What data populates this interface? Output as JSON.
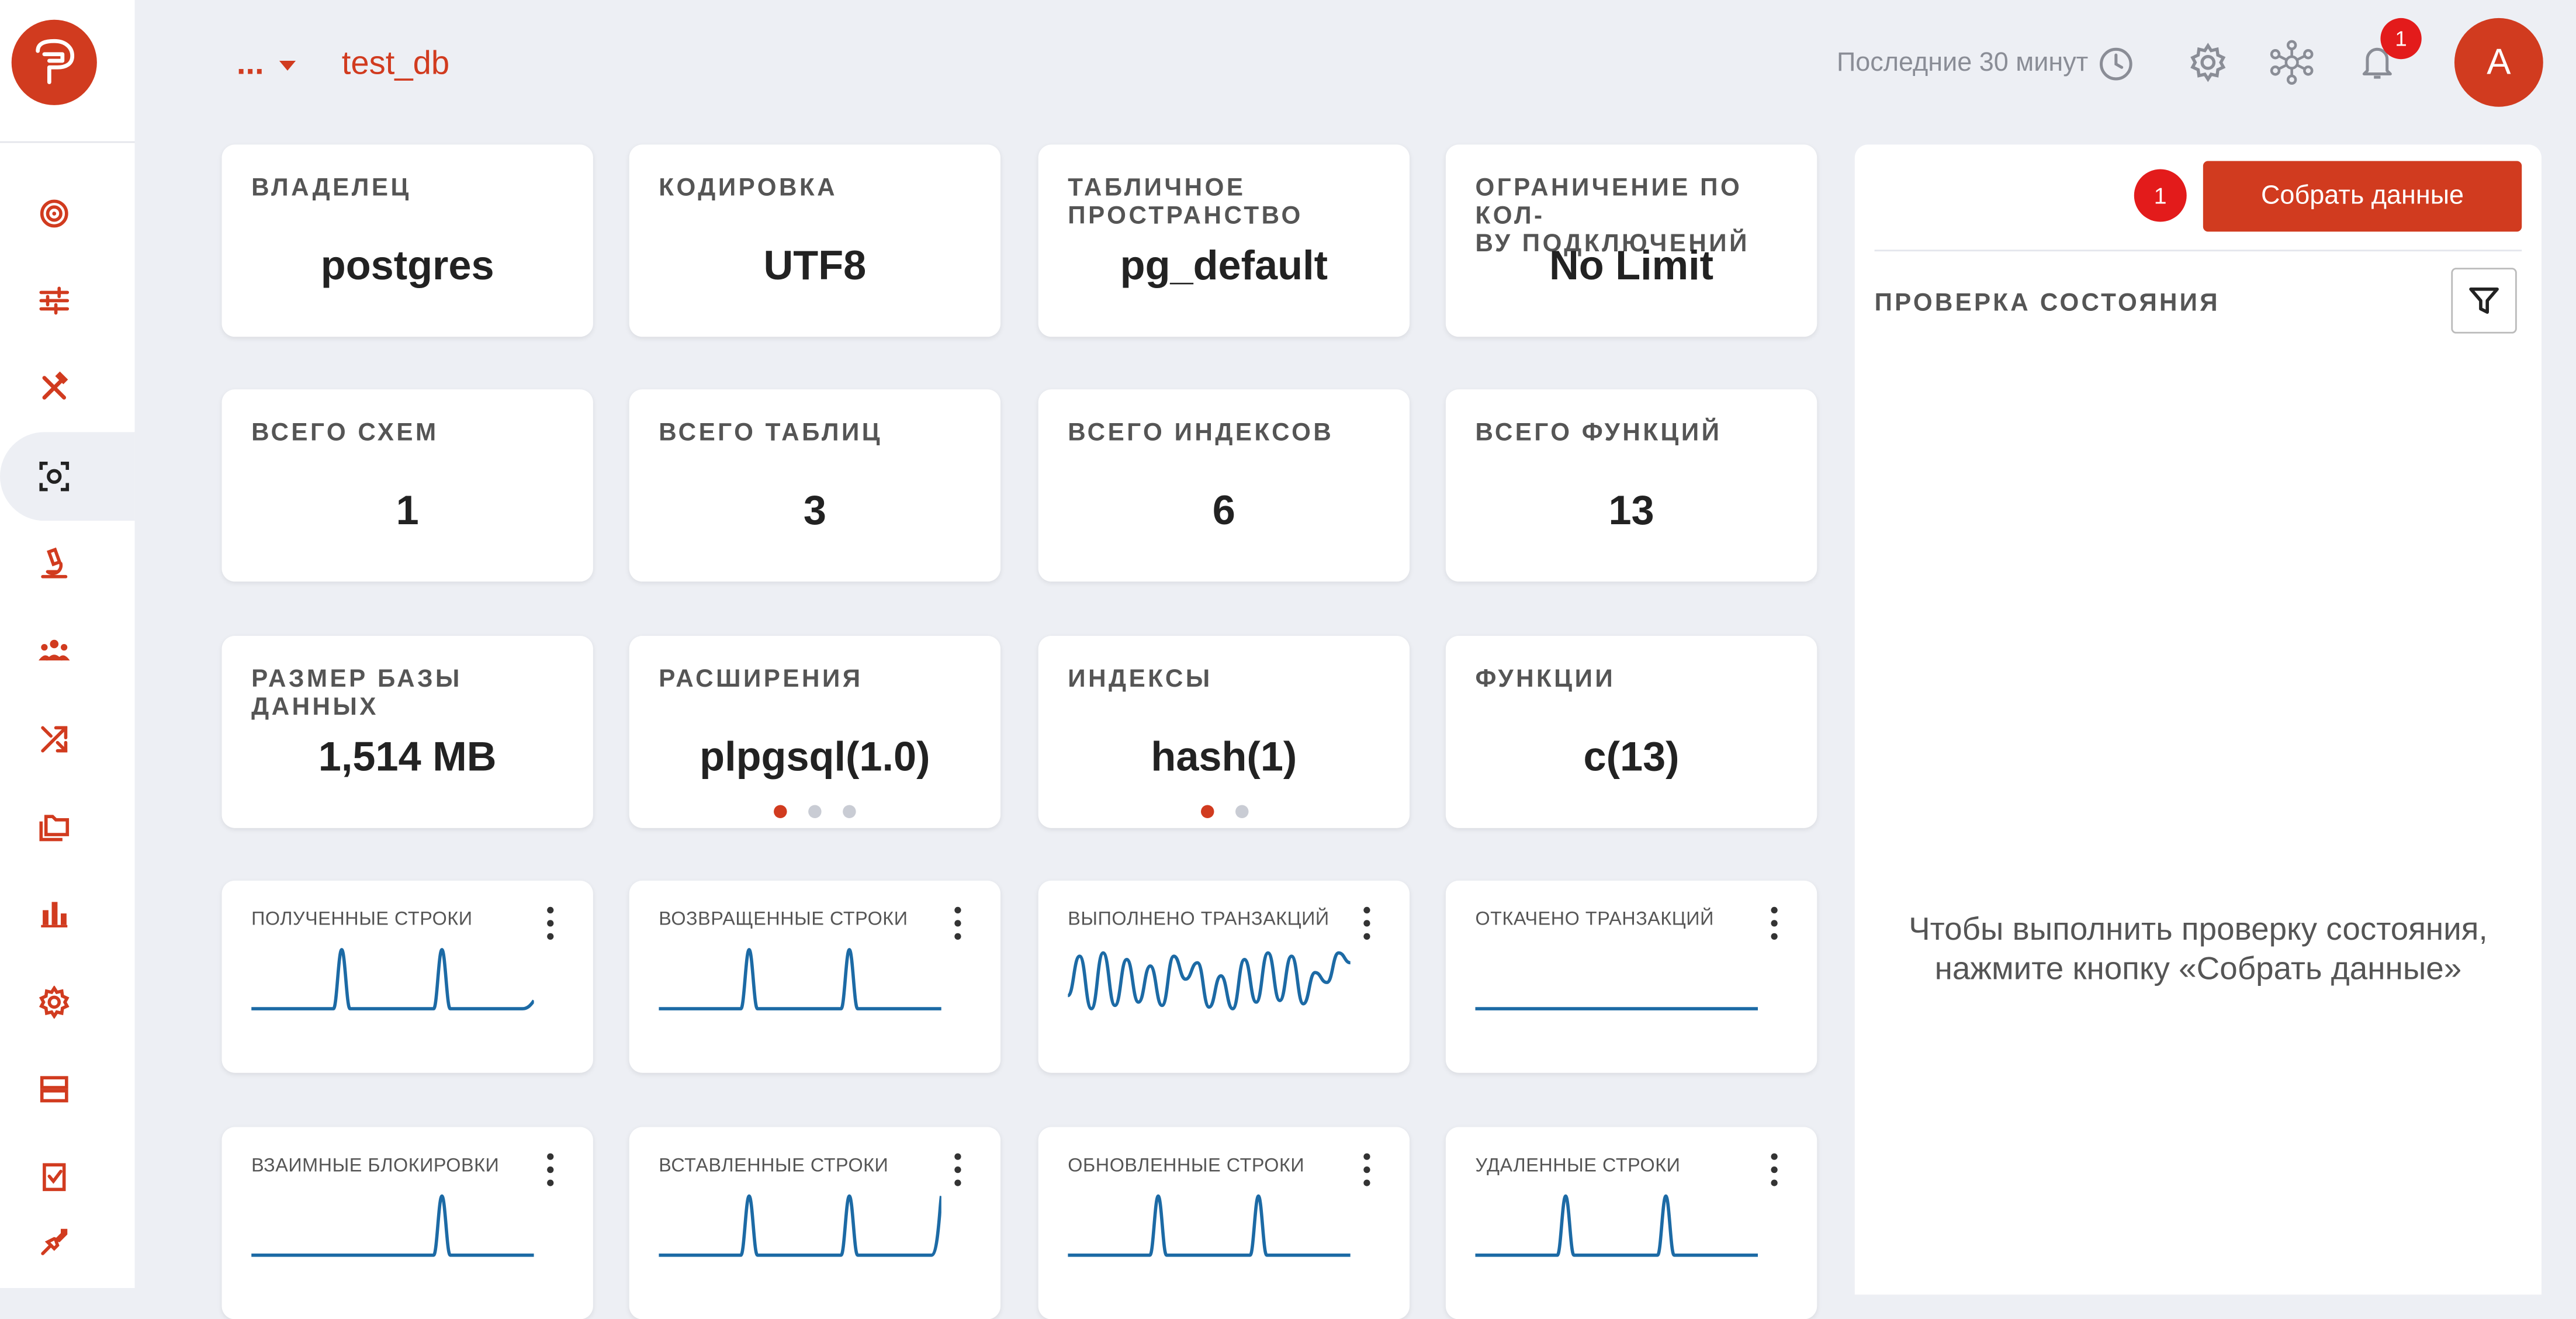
{
  "header": {
    "breadcrumb_more": "...",
    "db_name": "test_db",
    "time_range": "Последние 30 минут",
    "notifications_count": "1",
    "avatar_letter": "A"
  },
  "sidebar": {
    "items": [
      {
        "icon": "target-icon"
      },
      {
        "icon": "sliders-icon"
      },
      {
        "icon": "tools-icon"
      },
      {
        "icon": "scan-icon",
        "active": true
      },
      {
        "icon": "microscope-icon"
      },
      {
        "icon": "users-icon"
      },
      {
        "icon": "shuffle-icon"
      },
      {
        "icon": "folders-icon"
      },
      {
        "icon": "bar-chart-icon"
      },
      {
        "icon": "gear-icon"
      },
      {
        "icon": "server-icon"
      },
      {
        "icon": "checklist-icon"
      }
    ],
    "pin_icon": "pin-icon"
  },
  "info_cards": [
    {
      "title": "ВЛАДЕЛЕЦ",
      "value": "postgres"
    },
    {
      "title": "КОДИРОВКА",
      "value": "UTF8"
    },
    {
      "title": "ТАБЛИЧНОЕ\nПРОСТРАНСТВО",
      "value": "pg_default"
    },
    {
      "title": "ОГРАНИЧЕНИЕ ПО КОЛ-\nВУ ПОДКЛЮЧЕНИЙ",
      "value": "No Limit"
    },
    {
      "title": "ВСЕГО СХЕМ",
      "value": "1"
    },
    {
      "title": "ВСЕГО ТАБЛИЦ",
      "value": "3"
    },
    {
      "title": "ВСЕГО ИНДЕКСОВ",
      "value": "6"
    },
    {
      "title": "ВСЕГО ФУНКЦИЙ",
      "value": "13"
    },
    {
      "title": "РАЗМЕР БАЗЫ ДАННЫХ",
      "value": "1,514 MB"
    },
    {
      "title": "РАСШИРЕНИЯ",
      "value": "plpgsql(1.0)",
      "pages": 3,
      "page": 1
    },
    {
      "title": "ИНДЕКСЫ",
      "value": "hash(1)",
      "pages": 2,
      "page": 1
    },
    {
      "title": "ФУНКЦИИ",
      "value": "c(13)"
    }
  ],
  "chart_cards": [
    {
      "title": "ПОЛУЧЕННЫЕ СТРОКИ",
      "pattern": "two-spikes-tail"
    },
    {
      "title": "ВОЗВРАЩЕННЫЕ СТРОКИ",
      "pattern": "two-spikes"
    },
    {
      "title": "ВЫПОЛНЕНО ТРАНЗАКЦИЙ",
      "pattern": "wave"
    },
    {
      "title": "ОТКАЧЕНО ТРАНЗАКЦИЙ",
      "pattern": "flat"
    },
    {
      "title": "ВЗАИМНЫЕ БЛОКИРОВКИ",
      "pattern": "one-spike"
    },
    {
      "title": "ВСТАВЛЕННЫЕ СТРОКИ",
      "pattern": "three-spikes"
    },
    {
      "title": "ОБНОВЛЕННЫЕ СТРОКИ",
      "pattern": "two-spikes"
    },
    {
      "title": "УДАЛЕННЫЕ СТРОКИ",
      "pattern": "two-spikes"
    }
  ],
  "health_panel": {
    "collect_button": "Собрать данные",
    "collect_badge": "1",
    "title": "ПРОВЕРКА СОСТОЯНИЯ",
    "empty_message": "Чтобы выполнить проверку состояния,\nнажмите кнопку «Собрать данные»"
  },
  "colors": {
    "accent": "#d13b1f",
    "badge": "#e31b1b",
    "line": "#1c6aa5",
    "background": "#edeff4"
  }
}
